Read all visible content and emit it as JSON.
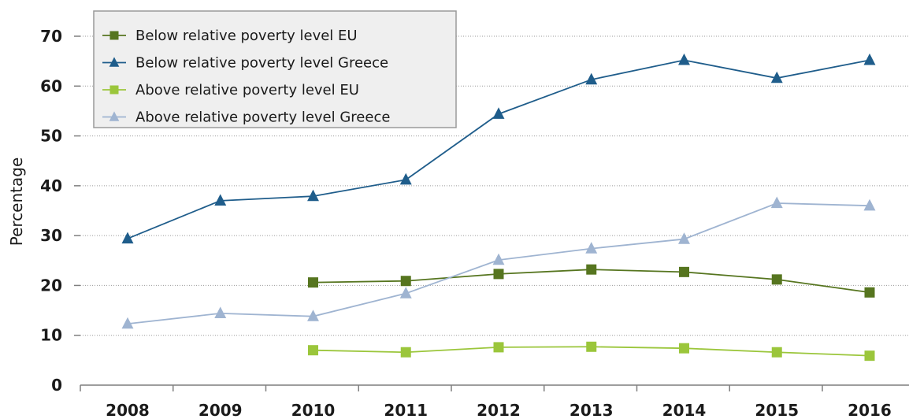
{
  "chart_data": {
    "type": "line",
    "title": "",
    "xlabel": "",
    "ylabel": "Percentage",
    "ylim": [
      0,
      70
    ],
    "yticks": [
      "0",
      "10",
      "20",
      "30",
      "40",
      "50",
      "60",
      "70"
    ],
    "categories": [
      "2008",
      "2009",
      "2010",
      "2011",
      "2012",
      "2013",
      "2014",
      "2015",
      "2016"
    ],
    "grid": "horizontal dotted",
    "legend_position": "top-left",
    "series": [
      {
        "name": "Below relative poverty level EU",
        "marker": "square",
        "color": "#56751f",
        "values": [
          null,
          null,
          20.6,
          20.9,
          22.3,
          23.2,
          22.7,
          21.2,
          18.6
        ]
      },
      {
        "name": "Below relative poverty level Greece",
        "marker": "triangle",
        "color": "#1f5d8b",
        "values": [
          29.4,
          37.0,
          37.9,
          41.2,
          54.4,
          61.3,
          65.2,
          61.6,
          65.2
        ]
      },
      {
        "name": "Above relative poverty level EU",
        "marker": "square",
        "color": "#9bc63b",
        "values": [
          null,
          null,
          7.0,
          6.6,
          7.6,
          7.7,
          7.4,
          6.6,
          5.9
        ]
      },
      {
        "name": "Above relative poverty level Greece",
        "marker": "triangle",
        "color": "#9fb4d1",
        "values": [
          12.3,
          14.4,
          13.8,
          18.4,
          25.1,
          27.4,
          29.3,
          36.5,
          36.0
        ]
      }
    ]
  }
}
